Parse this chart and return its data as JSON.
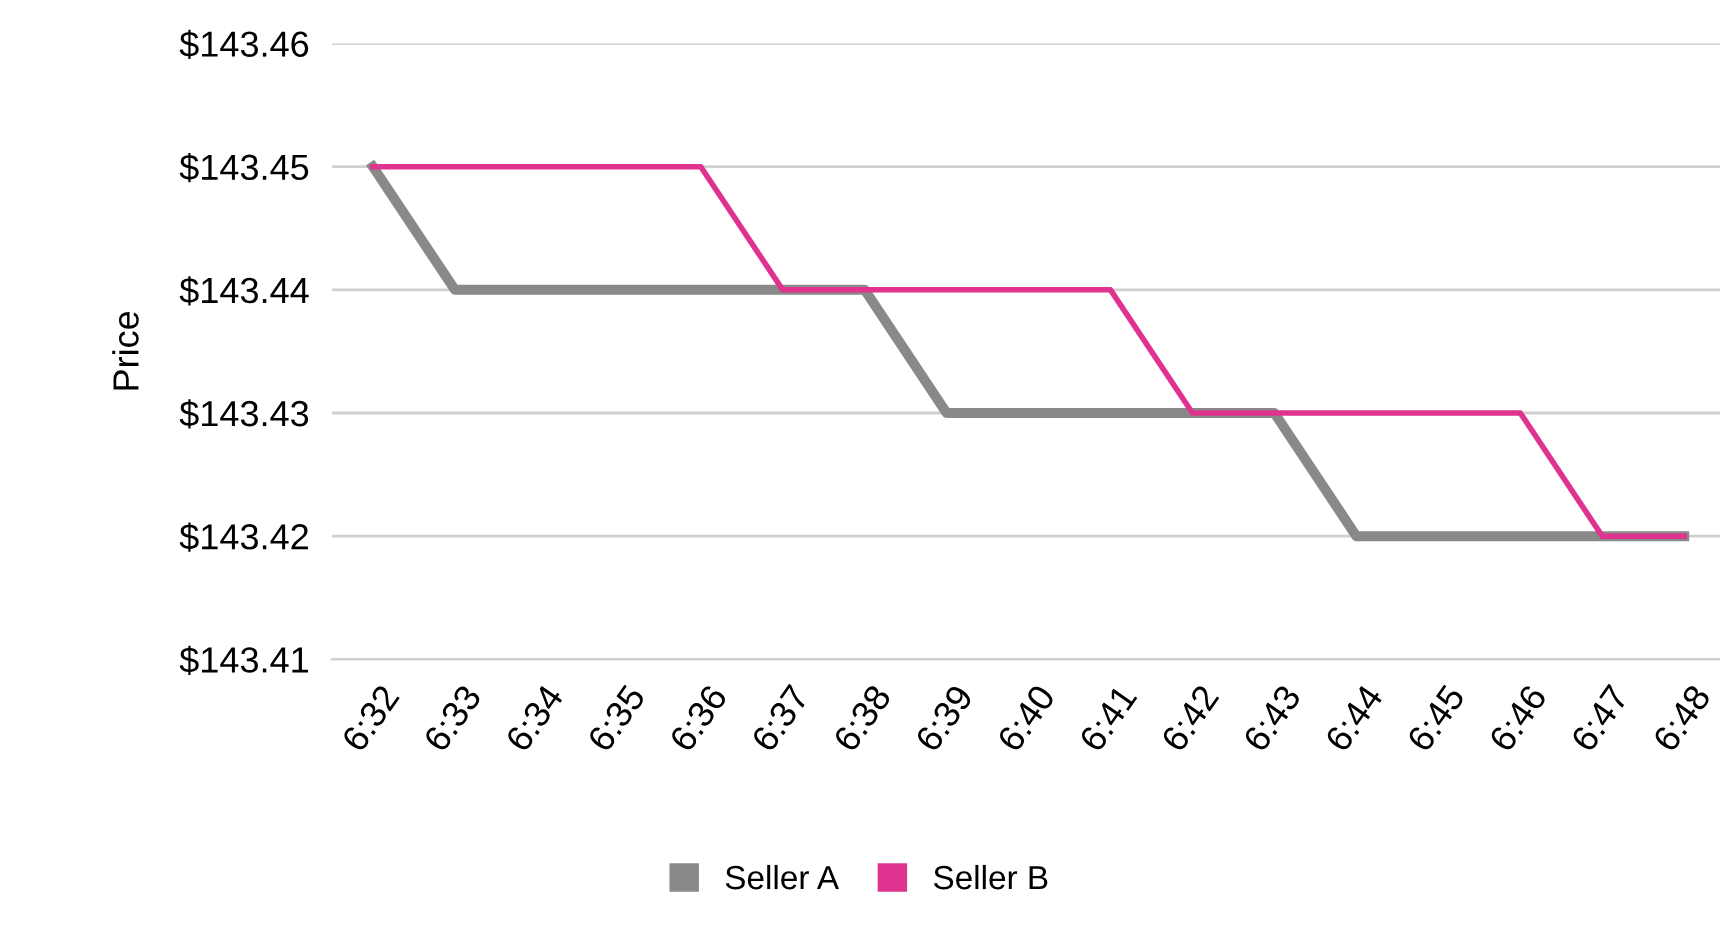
{
  "chart_data": {
    "type": "line",
    "ylabel": "Price",
    "categories": [
      "6:32",
      "6:33",
      "6:34",
      "6:35",
      "6:36",
      "6:37",
      "6:38",
      "6:39",
      "6:40",
      "6:41",
      "6:42",
      "6:43",
      "6:44",
      "6:45",
      "6:46",
      "6:47",
      "6:48"
    ],
    "series": [
      {
        "name": "Seller A",
        "color": "#898989",
        "values": [
          143.45,
          143.44,
          143.44,
          143.44,
          143.44,
          143.44,
          143.44,
          143.43,
          143.43,
          143.43,
          143.43,
          143.43,
          143.42,
          143.42,
          143.42,
          143.42,
          143.42
        ]
      },
      {
        "name": "Seller B",
        "color": "#e0338f",
        "values": [
          143.45,
          143.45,
          143.45,
          143.45,
          143.45,
          143.44,
          143.44,
          143.44,
          143.44,
          143.44,
          143.43,
          143.43,
          143.43,
          143.43,
          143.43,
          143.42,
          143.42
        ]
      }
    ],
    "ylim": [
      143.41,
      143.46
    ],
    "yticks": [
      {
        "value": 143.41,
        "label": "$143.41"
      },
      {
        "value": 143.42,
        "label": "$143.42"
      },
      {
        "value": 143.43,
        "label": "$143.43"
      },
      {
        "value": 143.44,
        "label": "$143.44"
      },
      {
        "value": 143.45,
        "label": "$143.45"
      },
      {
        "value": 143.46,
        "label": "$143.46"
      }
    ],
    "grid": "y",
    "legend": "bottom",
    "marker": "none",
    "line_style": "solid"
  }
}
